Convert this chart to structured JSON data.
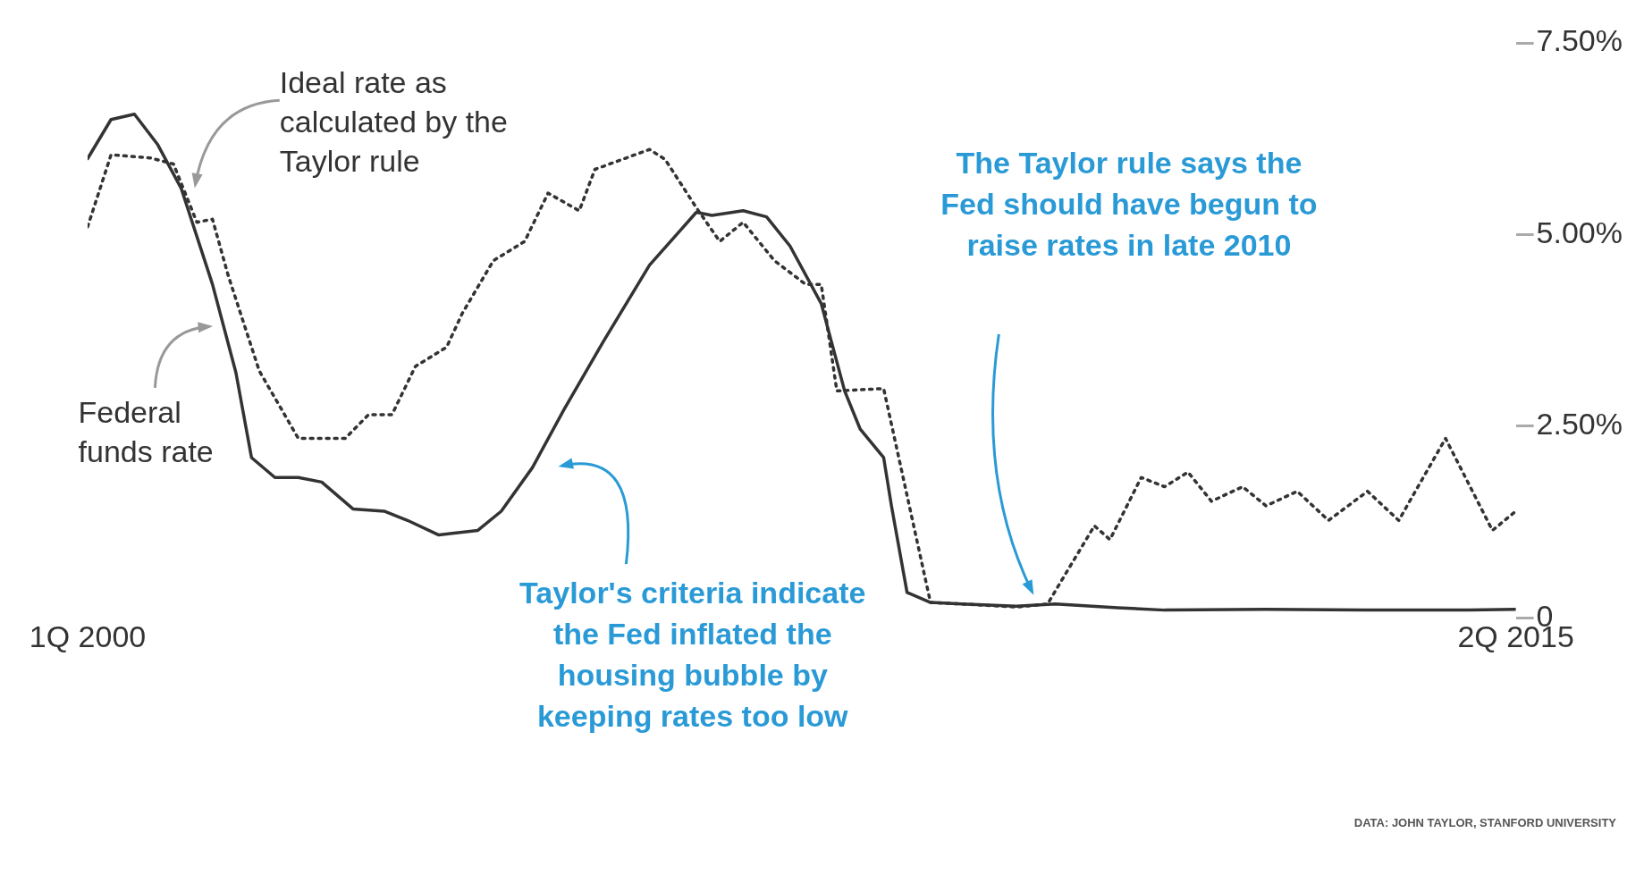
{
  "chart_data": {
    "type": "line",
    "xlim": [
      "2000-01",
      "2015-04"
    ],
    "xticks": [
      {
        "value": "2000-01",
        "label": "1Q 2000"
      },
      {
        "value": "2015-04",
        "label": "2Q 2015"
      }
    ],
    "ylim": [
      0,
      7.5
    ],
    "yticks": [
      {
        "value": 0,
        "label": "0"
      },
      {
        "value": 2.5,
        "label": "2.50%"
      },
      {
        "value": 5,
        "label": "5.00%"
      },
      {
        "value": 7.5,
        "label": "7.50%"
      }
    ],
    "grid": false,
    "legend": false,
    "marker": "none",
    "series": [
      {
        "name": "Federal funds rate",
        "color": "#333333",
        "line_style": "solid",
        "x": [
          "2000-01",
          "2000-04",
          "2000-07",
          "2000-10",
          "2001-01",
          "2001-05",
          "2001-08",
          "2001-10",
          "2002-01",
          "2002-04",
          "2002-07",
          "2002-11",
          "2003-03",
          "2003-06",
          "2003-10",
          "2004-03",
          "2004-06",
          "2004-10",
          "2005-02",
          "2005-07",
          "2006-01",
          "2006-07",
          "2006-09",
          "2007-01",
          "2007-04",
          "2007-07",
          "2007-11",
          "2008-02",
          "2008-04",
          "2008-07",
          "2008-08",
          "2008-10",
          "2009-01",
          "2009-05",
          "2009-12",
          "2010-05",
          "2011-01",
          "2011-07",
          "2012-08",
          "2013-09",
          "2014-10",
          "2015-04"
        ],
        "values": [
          5.99,
          6.5,
          6.57,
          6.17,
          5.6,
          4.35,
          3.2,
          2.09,
          1.83,
          1.83,
          1.77,
          1.42,
          1.39,
          1.27,
          1.08,
          1.14,
          1.39,
          1.96,
          2.71,
          3.59,
          4.6,
          5.29,
          5.25,
          5.31,
          5.23,
          4.85,
          4.1,
          2.96,
          2.46,
          2.09,
          1.46,
          0.33,
          0.2,
          0.18,
          0.15,
          0.18,
          0.13,
          0.1,
          0.11,
          0.1,
          0.1,
          0.11
        ]
      },
      {
        "name": "Ideal rate as calculated by the Taylor rule",
        "color": "#333333",
        "line_style": "dotted",
        "x": [
          "2000-01",
          "2000-04",
          "2000-09",
          "2000-12",
          "2001-03",
          "2001-05",
          "2001-07",
          "2001-11",
          "2002-04",
          "2002-10",
          "2003-01",
          "2003-04",
          "2003-07",
          "2003-11",
          "2004-01",
          "2004-05",
          "2004-09",
          "2004-12",
          "2005-04",
          "2005-06",
          "2006-01",
          "2006-03",
          "2006-07",
          "2006-10",
          "2007-01",
          "2007-05",
          "2007-09",
          "2007-11",
          "2008-01",
          "2008-07",
          "2009-01",
          "2009-05",
          "2009-12",
          "2010-04",
          "2010-10",
          "2010-12",
          "2011-04",
          "2011-07",
          "2011-10",
          "2012-01",
          "2012-05",
          "2012-08",
          "2012-12",
          "2013-04",
          "2013-09",
          "2014-01",
          "2014-07",
          "2015-01",
          "2015-04"
        ],
        "values": [
          5.1,
          6.04,
          6.0,
          5.92,
          5.16,
          5.2,
          4.47,
          3.22,
          2.34,
          2.34,
          2.65,
          2.65,
          3.28,
          3.53,
          3.97,
          4.66,
          4.91,
          5.54,
          5.31,
          5.85,
          6.11,
          5.98,
          5.35,
          4.91,
          5.16,
          4.66,
          4.35,
          4.35,
          2.96,
          2.99,
          0.2,
          0.18,
          0.14,
          0.18,
          1.2,
          1.02,
          1.83,
          1.71,
          1.9,
          1.52,
          1.71,
          1.46,
          1.65,
          1.27,
          1.65,
          1.27,
          2.34,
          1.14,
          1.39
        ]
      }
    ],
    "annotations": [
      "Taylor's criteria indicate the Fed inflated the housing bubble by keeping rates too low",
      "The Taylor rule says the Fed should have begun to raise rates in late 2010",
      "DATA: JOHN TAYLOR, STANFORD UNIVERSITY"
    ]
  }
}
